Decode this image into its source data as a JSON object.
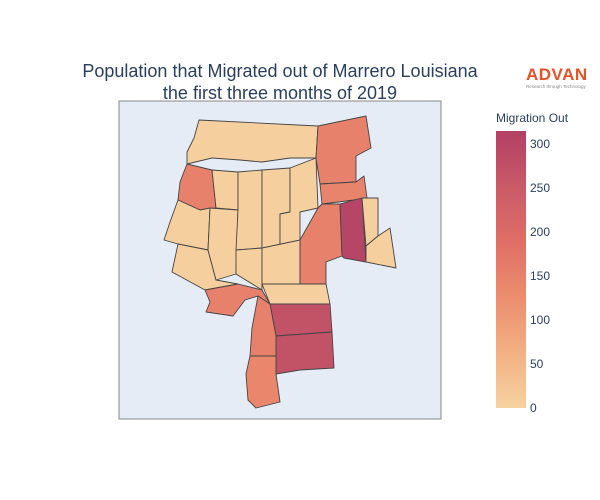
{
  "chart_data": {
    "type": "choropleth",
    "title": "Population that Migrated out of Marrero Louisiana the first three months of 2019",
    "title_lines": [
      "Population that Migrated out of Marrero Louisiana",
      "the first three months of 2019"
    ],
    "colorbar": {
      "title": "Migration Out",
      "range": [
        0,
        315
      ],
      "ticks": [
        0,
        50,
        100,
        150,
        200,
        250,
        300
      ],
      "colorscale": [
        "#f6d2a0",
        "#f3b083",
        "#ec8d6e",
        "#df6e66",
        "#c95a67",
        "#b24066"
      ]
    },
    "regions": [
      {
        "id": "north-large",
        "value": 5
      },
      {
        "id": "north-east-strip",
        "value": 150
      },
      {
        "id": "east-right",
        "value": 145
      },
      {
        "id": "west-small",
        "value": 150
      },
      {
        "id": "west-upper",
        "value": 5
      },
      {
        "id": "west-mid",
        "value": 5
      },
      {
        "id": "west-lower",
        "value": 5
      },
      {
        "id": "central-a",
        "value": 5
      },
      {
        "id": "central-b",
        "value": 5
      },
      {
        "id": "central-c",
        "value": 5
      },
      {
        "id": "central-d",
        "value": 5
      },
      {
        "id": "central-e",
        "value": 5
      },
      {
        "id": "central-f",
        "value": 5
      },
      {
        "id": "east-col",
        "value": 150
      },
      {
        "id": "east-highlight",
        "value": 300
      },
      {
        "id": "east-small",
        "value": 5
      },
      {
        "id": "east-tail",
        "value": 5
      },
      {
        "id": "south-bar",
        "value": 5
      },
      {
        "id": "southwest-strip",
        "value": 150
      },
      {
        "id": "south-a",
        "value": 270
      },
      {
        "id": "south-b",
        "value": 270
      },
      {
        "id": "south-left-1",
        "value": 150
      },
      {
        "id": "south-left-2",
        "value": 140
      }
    ]
  },
  "logo": {
    "name": "ADVAN",
    "tagline": "Research through Technology"
  }
}
